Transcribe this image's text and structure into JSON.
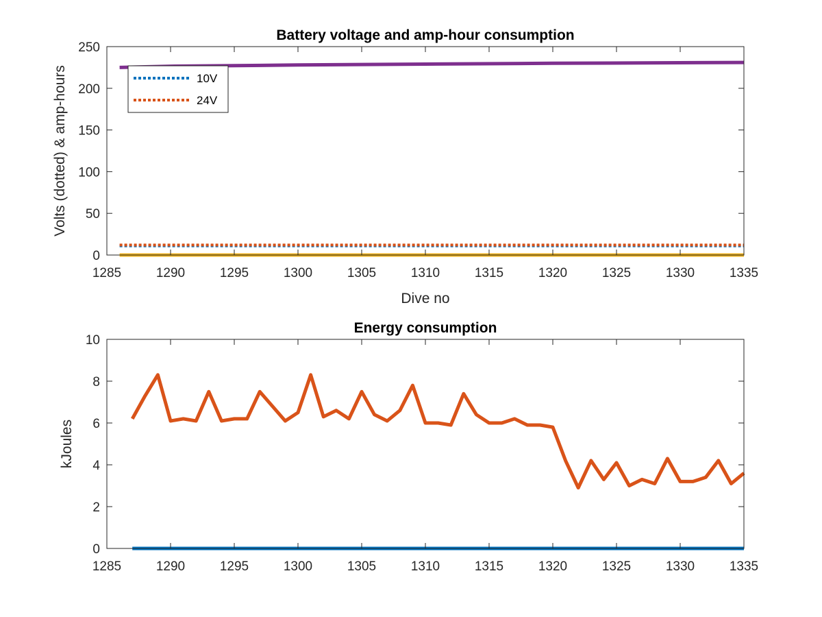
{
  "chart_data": [
    {
      "type": "line",
      "title": "Battery voltage and amp-hour consumption",
      "xlabel": "Dive no",
      "ylabel": "Volts (dotted) & amp-hours",
      "xlim": [
        1285,
        1335
      ],
      "ylim": [
        0,
        250
      ],
      "xticks": [
        "1285",
        "1290",
        "1295",
        "1300",
        "1305",
        "1310",
        "1315",
        "1320",
        "1325",
        "1330",
        "1335"
      ],
      "yticks": [
        "0",
        "50",
        "100",
        "150",
        "200",
        "250"
      ],
      "grid": false,
      "legend_position": "top-left",
      "series": [
        {
          "name": "10V",
          "style": "dotted",
          "color": "#0072BD",
          "x": [
            1286,
            1335
          ],
          "values": [
            11,
            11
          ]
        },
        {
          "name": "24V",
          "style": "dotted",
          "color": "#D95319",
          "x": [
            1286,
            1335
          ],
          "values": [
            12,
            12
          ]
        },
        {
          "style": "solid",
          "color": "#7E2F8E",
          "x": [
            1286,
            1290,
            1300,
            1310,
            1320,
            1335
          ],
          "values": [
            225,
            226.5,
            228,
            229,
            230,
            231
          ]
        },
        {
          "style": "solid",
          "color": "#EDB120",
          "x": [
            1286,
            1335
          ],
          "values": [
            0,
            0
          ]
        }
      ]
    },
    {
      "type": "line",
      "title": "Energy consumption",
      "xlabel": "",
      "ylabel": "kJoules",
      "xlim": [
        1285,
        1335
      ],
      "ylim": [
        0,
        10
      ],
      "xticks": [
        "1285",
        "1290",
        "1295",
        "1300",
        "1305",
        "1310",
        "1315",
        "1320",
        "1325",
        "1330",
        "1335"
      ],
      "yticks": [
        "0",
        "2",
        "4",
        "6",
        "8",
        "10"
      ],
      "grid": false,
      "series": [
        {
          "style": "solid",
          "color": "#D95319",
          "x": [
            1287,
            1288,
            1289,
            1290,
            1291,
            1292,
            1293,
            1294,
            1295,
            1296,
            1297,
            1298,
            1299,
            1300,
            1301,
            1302,
            1303,
            1304,
            1305,
            1306,
            1307,
            1308,
            1309,
            1310,
            1311,
            1312,
            1313,
            1314,
            1315,
            1316,
            1317,
            1318,
            1319,
            1320,
            1321,
            1322,
            1323,
            1324,
            1325,
            1326,
            1327,
            1328,
            1329,
            1330,
            1331,
            1332,
            1333,
            1334,
            1335
          ],
          "values": [
            6.2,
            7.3,
            8.3,
            6.1,
            6.2,
            6.1,
            7.5,
            6.1,
            6.2,
            6.2,
            7.5,
            6.8,
            6.1,
            6.5,
            8.3,
            6.3,
            6.6,
            6.2,
            7.5,
            6.4,
            6.1,
            6.6,
            7.8,
            6.0,
            6.0,
            5.9,
            7.4,
            6.4,
            6.0,
            6.0,
            6.2,
            5.9,
            5.9,
            5.8,
            4.2,
            2.9,
            4.2,
            3.3,
            4.1,
            3.0,
            3.3,
            3.1,
            4.3,
            3.2,
            3.2,
            3.4,
            4.2,
            3.1,
            3.6
          ]
        },
        {
          "style": "solid",
          "color": "#0072BD",
          "x": [
            1287,
            1335
          ],
          "values": [
            0,
            0
          ]
        }
      ]
    }
  ]
}
